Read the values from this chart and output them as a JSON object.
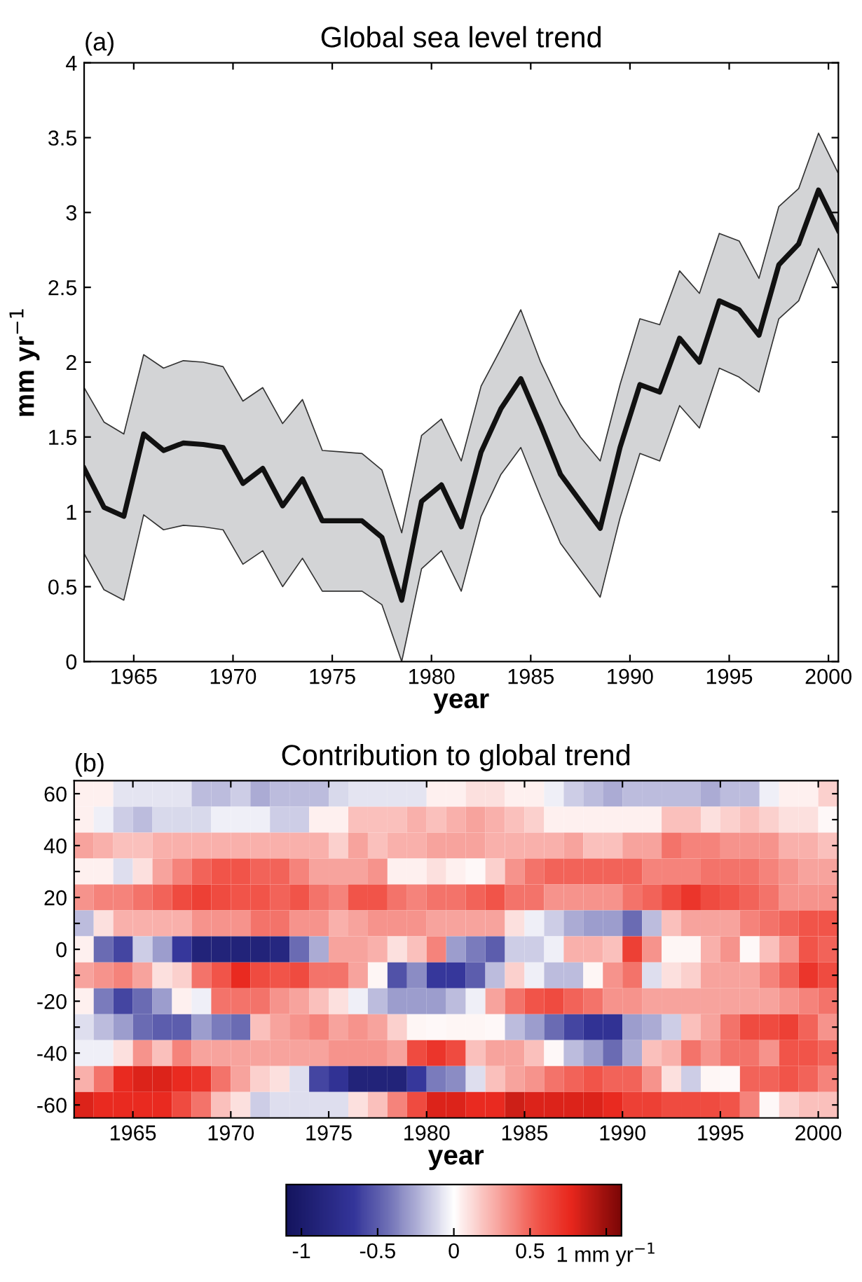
{
  "chart_data": [
    {
      "type": "line",
      "title": "Global sea level trend",
      "xlabel": "year",
      "ylabel": "mm yr$^{−1}$",
      "annotations": [
        "(a)"
      ],
      "x": [
        1962.5,
        1963.5,
        1964.5,
        1965.5,
        1966.5,
        1967.5,
        1968.5,
        1969.5,
        1970.5,
        1971.5,
        1972.5,
        1973.5,
        1974.5,
        1975.5,
        1976.5,
        1977.5,
        1978.5,
        1979.5,
        1980.5,
        1981.5,
        1982.5,
        1983.5,
        1984.5,
        1985.5,
        1986.5,
        1987.5,
        1988.5,
        1989.5,
        1990.5,
        1991.5,
        1992.5,
        1993.5,
        1994.5,
        1995.5,
        1996.5,
        1997.5,
        1998.5,
        1999.5,
        2000.5
      ],
      "series": [
        {
          "color": "#111111",
          "values": [
            1.29,
            1.03,
            0.97,
            1.52,
            1.41,
            1.46,
            1.45,
            1.43,
            1.19,
            1.29,
            1.04,
            1.22,
            0.94,
            0.94,
            0.94,
            0.83,
            0.41,
            1.07,
            1.18,
            0.9,
            1.4,
            1.69,
            1.89,
            1.58,
            1.25,
            1.07,
            0.89,
            1.43,
            1.85,
            1.8,
            2.16,
            2.0,
            2.41,
            2.35,
            2.18,
            2.65,
            2.79,
            3.15,
            2.88
          ],
          "lower": [
            0.72,
            0.48,
            0.41,
            0.98,
            0.88,
            0.91,
            0.9,
            0.88,
            0.65,
            0.74,
            0.5,
            0.69,
            0.47,
            0.47,
            0.47,
            0.38,
            0.0,
            0.62,
            0.74,
            0.47,
            0.97,
            1.25,
            1.43,
            1.1,
            0.79,
            0.61,
            0.43,
            0.96,
            1.39,
            1.34,
            1.71,
            1.56,
            1.96,
            1.9,
            1.8,
            2.29,
            2.41,
            2.76,
            2.5
          ],
          "upper": [
            1.83,
            1.6,
            1.52,
            2.05,
            1.96,
            2.01,
            2.0,
            1.97,
            1.74,
            1.83,
            1.59,
            1.75,
            1.41,
            1.4,
            1.39,
            1.28,
            0.86,
            1.51,
            1.62,
            1.34,
            1.84,
            2.09,
            2.35,
            2.0,
            1.72,
            1.5,
            1.34,
            1.85,
            2.29,
            2.25,
            2.61,
            2.46,
            2.86,
            2.81,
            2.56,
            3.04,
            3.16,
            3.53,
            3.26
          ]
        }
      ],
      "xlim": [
        1962.5,
        2000.5
      ],
      "xticks": [
        1965,
        1970,
        1975,
        1980,
        1985,
        1990,
        1995,
        2000
      ],
      "ylim": [
        0,
        4
      ],
      "yticks": [
        0,
        0.5,
        1,
        1.5,
        2,
        2.5,
        3,
        3.5,
        4
      ],
      "grid": false,
      "legend": false
    },
    {
      "type": "heatmap",
      "title": "Contribution to global trend",
      "xlabel": "year",
      "annotations": [
        "(b)"
      ],
      "x": [
        1962.5,
        1963.5,
        1964.5,
        1965.5,
        1966.5,
        1967.5,
        1968.5,
        1969.5,
        1970.5,
        1971.5,
        1972.5,
        1973.5,
        1974.5,
        1975.5,
        1976.5,
        1977.5,
        1978.5,
        1979.5,
        1980.5,
        1981.5,
        1982.5,
        1983.5,
        1984.5,
        1985.5,
        1986.5,
        1987.5,
        1988.5,
        1989.5,
        1990.5,
        1991.5,
        1992.5,
        1993.5,
        1994.5,
        1995.5,
        1996.5,
        1997.5,
        1998.5,
        1999.5,
        2000.5
      ],
      "xlim": [
        1962,
        2001
      ],
      "xticks": [
        1965,
        1970,
        1975,
        1980,
        1985,
        1990,
        1995,
        2000
      ],
      "y_categories": [
        "60",
        null,
        "40",
        null,
        "20",
        null,
        "0",
        null,
        "-20",
        null,
        "-40",
        null,
        "-60"
      ],
      "cells": [
        [
          0.05,
          0.05,
          -0.08,
          -0.08,
          -0.08,
          -0.08,
          -0.2,
          -0.2,
          -0.15,
          -0.25,
          -0.2,
          -0.2,
          -0.2,
          -0.12,
          -0.08,
          -0.08,
          -0.08,
          -0.08,
          0.05,
          0.05,
          0.1,
          0.1,
          0.05,
          0.05,
          -0.05,
          -0.15,
          -0.2,
          -0.25,
          -0.2,
          -0.2,
          -0.2,
          -0.2,
          -0.25,
          -0.2,
          -0.2,
          -0.05,
          0.05,
          0.05,
          0.15
        ],
        [
          0.05,
          -0.05,
          -0.15,
          -0.2,
          -0.12,
          -0.12,
          -0.12,
          -0.05,
          -0.05,
          -0.05,
          -0.15,
          -0.15,
          0.05,
          0.05,
          0.2,
          0.2,
          0.2,
          0.25,
          0.2,
          0.25,
          0.3,
          0.25,
          0.2,
          0.15,
          0.05,
          0.05,
          0.05,
          0.05,
          0.05,
          0.05,
          0.2,
          0.2,
          0.1,
          0.15,
          0.2,
          0.15,
          0.1,
          0.1,
          0.02
        ],
        [
          0.3,
          0.25,
          0.2,
          0.2,
          0.25,
          0.25,
          0.25,
          0.25,
          0.25,
          0.25,
          0.25,
          0.25,
          0.25,
          0.15,
          0.3,
          0.2,
          0.25,
          0.25,
          0.3,
          0.3,
          0.3,
          0.25,
          0.25,
          0.25,
          0.25,
          0.3,
          0.2,
          0.2,
          0.3,
          0.3,
          0.45,
          0.4,
          0.4,
          0.35,
          0.35,
          0.35,
          0.25,
          0.25,
          0.2
        ],
        [
          0.05,
          0.05,
          -0.1,
          0.1,
          0.3,
          0.4,
          0.5,
          0.55,
          0.55,
          0.5,
          0.5,
          0.4,
          0.3,
          0.3,
          0.3,
          0.35,
          0.05,
          0.05,
          0.1,
          0.05,
          0.02,
          0.15,
          0.35,
          0.45,
          0.5,
          0.5,
          0.5,
          0.5,
          0.5,
          0.4,
          0.4,
          0.4,
          0.45,
          0.45,
          0.45,
          0.4,
          0.35,
          0.3,
          0.3
        ],
        [
          0.35,
          0.4,
          0.4,
          0.45,
          0.5,
          0.6,
          0.65,
          0.6,
          0.55,
          0.55,
          0.5,
          0.55,
          0.45,
          0.4,
          0.55,
          0.55,
          0.45,
          0.4,
          0.45,
          0.45,
          0.5,
          0.55,
          0.45,
          0.45,
          0.35,
          0.35,
          0.35,
          0.35,
          0.45,
          0.5,
          0.6,
          0.7,
          0.6,
          0.55,
          0.5,
          0.45,
          0.35,
          0.35,
          0.35
        ],
        [
          -0.2,
          0.1,
          0.25,
          0.25,
          0.25,
          0.25,
          0.35,
          0.35,
          0.35,
          0.45,
          0.45,
          0.35,
          0.35,
          0.25,
          0.3,
          0.35,
          0.35,
          0.35,
          0.3,
          0.3,
          0.3,
          0.3,
          0.1,
          -0.05,
          -0.15,
          -0.25,
          -0.3,
          -0.3,
          -0.45,
          -0.2,
          0.2,
          0.3,
          0.3,
          0.3,
          0.4,
          0.45,
          0.5,
          0.55,
          0.55
        ],
        [
          0.05,
          -0.45,
          -0.6,
          -0.15,
          -0.3,
          -0.65,
          -0.9,
          -0.9,
          -0.9,
          -0.9,
          -0.85,
          -0.45,
          -0.25,
          0.3,
          0.3,
          0.25,
          0.1,
          0.2,
          0.4,
          -0.3,
          -0.4,
          -0.5,
          -0.15,
          -0.15,
          -0.05,
          0.25,
          0.25,
          0.2,
          0.65,
          0.35,
          0.03,
          0.03,
          0.25,
          0.35,
          0.02,
          0.2,
          0.35,
          0.55,
          0.5
        ],
        [
          0.3,
          0.35,
          0.4,
          0.3,
          0.1,
          0.15,
          0.45,
          0.55,
          0.75,
          0.6,
          0.55,
          0.6,
          0.45,
          0.45,
          0.3,
          0.03,
          -0.55,
          -0.35,
          -0.65,
          -0.65,
          -0.5,
          -0.2,
          0.15,
          -0.05,
          -0.2,
          -0.2,
          0.03,
          0.35,
          0.45,
          -0.1,
          0.1,
          0.15,
          0.3,
          0.3,
          0.3,
          0.4,
          0.5,
          0.7,
          0.6
        ],
        [
          0.05,
          -0.4,
          -0.6,
          -0.45,
          -0.3,
          0.05,
          -0.05,
          0.45,
          0.45,
          0.45,
          0.35,
          0.3,
          0.2,
          0.1,
          -0.05,
          -0.2,
          -0.3,
          -0.3,
          -0.3,
          -0.2,
          -0.05,
          0.3,
          0.45,
          0.55,
          0.6,
          0.5,
          0.45,
          0.35,
          0.35,
          0.3,
          0.3,
          0.3,
          0.3,
          0.3,
          0.3,
          0.3,
          0.35,
          0.4,
          0.45
        ],
        [
          -0.1,
          -0.2,
          -0.3,
          -0.45,
          -0.5,
          -0.5,
          -0.3,
          -0.4,
          -0.45,
          0.2,
          0.3,
          0.35,
          0.4,
          0.3,
          0.35,
          0.3,
          0.15,
          0.03,
          0.02,
          0.03,
          0.03,
          0.02,
          -0.2,
          -0.3,
          -0.45,
          -0.6,
          -0.7,
          -0.7,
          -0.3,
          -0.25,
          -0.15,
          0.2,
          0.3,
          0.45,
          0.6,
          0.6,
          0.65,
          0.5,
          0.35
        ],
        [
          -0.05,
          -0.05,
          0.1,
          0.35,
          0.2,
          0.4,
          0.3,
          0.3,
          0.3,
          0.3,
          0.3,
          0.3,
          0.3,
          0.35,
          0.35,
          0.35,
          0.3,
          0.6,
          0.7,
          0.6,
          0.2,
          0.3,
          0.3,
          0.2,
          0.02,
          -0.2,
          -0.3,
          -0.45,
          -0.25,
          0.2,
          0.25,
          0.45,
          0.35,
          0.45,
          0.45,
          0.35,
          0.55,
          0.55,
          0.5
        ],
        [
          0.25,
          0.45,
          0.75,
          0.8,
          0.8,
          0.75,
          0.7,
          0.45,
          0.3,
          0.15,
          0.1,
          -0.1,
          -0.6,
          -0.7,
          -0.9,
          -0.9,
          -0.9,
          -0.65,
          -0.4,
          -0.35,
          -0.1,
          0.2,
          0.3,
          0.35,
          0.45,
          0.5,
          0.55,
          0.5,
          0.5,
          0.35,
          0.1,
          -0.15,
          0.03,
          0.02,
          0.5,
          0.5,
          0.55,
          0.5,
          0.4
        ],
        [
          0.8,
          0.75,
          0.75,
          0.75,
          0.75,
          0.6,
          0.45,
          0.2,
          0.1,
          -0.15,
          -0.1,
          -0.1,
          -0.1,
          -0.1,
          0.1,
          0.2,
          0.4,
          0.6,
          0.8,
          0.8,
          0.75,
          0.75,
          0.85,
          0.8,
          0.8,
          0.8,
          0.8,
          0.75,
          0.65,
          0.65,
          0.6,
          0.6,
          0.6,
          0.55,
          0.4,
          0.02,
          0.15,
          0.2,
          0.2
        ]
      ],
      "clim": [
        -1.1,
        1.1
      ],
      "cticks": [
        -1,
        -0.5,
        0,
        0.5,
        {
          "value": 1,
          "label": "1 mm yr$^{−1}$"
        }
      ]
    }
  ]
}
